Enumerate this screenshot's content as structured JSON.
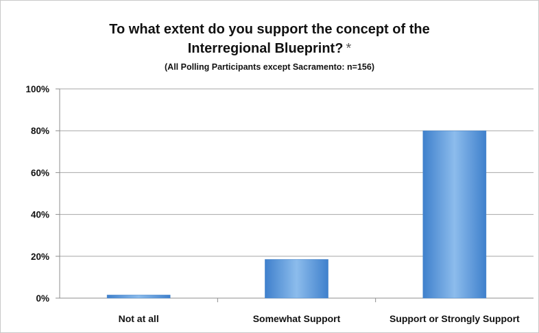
{
  "chart_data": {
    "type": "bar",
    "title_line1": "To what extent do you support the concept of the",
    "title_line2": "Interregional Blueprint?",
    "title_mark": "*",
    "subtitle": "(All Polling Participants except Sacramento: n=156)",
    "categories": [
      "Not at all",
      "Somewhat Support",
      "Support or Strongly Support"
    ],
    "values": [
      1.5,
      18.5,
      80
    ],
    "ylim": [
      0,
      100
    ],
    "yticks": [
      0,
      20,
      40,
      60,
      80,
      100
    ],
    "ytick_labels": [
      "0%",
      "20%",
      "40%",
      "60%",
      "80%",
      "100%"
    ],
    "grid": true,
    "legend": "none",
    "bar_color": "#5b9bd5"
  }
}
